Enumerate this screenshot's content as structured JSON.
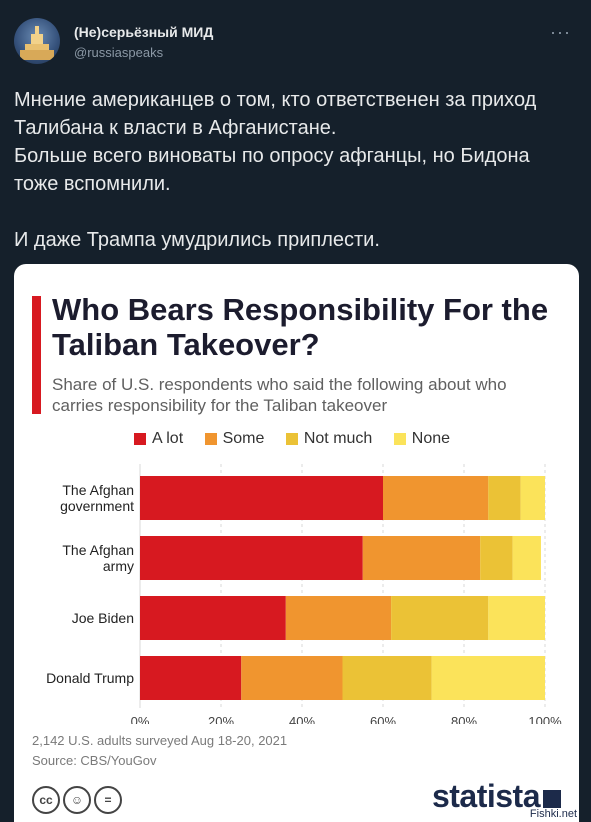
{
  "tweet": {
    "display_name": "(Не)серьёзный МИД",
    "handle": "@russiaspeaks",
    "more_label": "···",
    "text": "Мнение американцев о том, кто ответственен за приход Талибана к власти в Афганистане.\nБольше всего виноваты по опросу афганцы, но Бидона тоже вспомнили.\n\nИ даже Трампа умудрились приплести."
  },
  "card": {
    "footnote": "2,142 U.S. adults surveyed Aug 18-20, 2021",
    "source": "Source: CBS/YouGov",
    "logo_text": "statista",
    "watermark": "Fishki.net",
    "license_icons": [
      "cc",
      "by",
      "nd"
    ],
    "accent_color": "#d71920"
  },
  "chart_data": {
    "type": "bar",
    "orientation": "horizontal",
    "stacked": true,
    "title": "Who Bears Responsibility For the Taliban Takeover?",
    "subtitle": "Share of U.S. respondents who said the following about who carries responsibility for the Taliban takeover",
    "categories": [
      [
        "The Afghan",
        "government"
      ],
      [
        "The Afghan",
        "army"
      ],
      [
        "Joe Biden"
      ],
      [
        "Donald Trump"
      ]
    ],
    "series": [
      {
        "name": "A lot",
        "color": "#d71920",
        "values": [
          60,
          55,
          36,
          25
        ]
      },
      {
        "name": "Some",
        "color": "#f0952f",
        "values": [
          26,
          29,
          26,
          25
        ]
      },
      {
        "name": "Not much",
        "color": "#ebc236",
        "values": [
          8,
          8,
          24,
          22
        ]
      },
      {
        "name": "None",
        "color": "#fbe35a",
        "values": [
          6,
          7,
          14,
          28
        ]
      }
    ],
    "x_ticks": [
      "0%",
      "20%",
      "40%",
      "60%",
      "80%",
      "100%"
    ],
    "xlim": [
      0,
      100
    ],
    "grid": true,
    "legend_position": "top"
  }
}
